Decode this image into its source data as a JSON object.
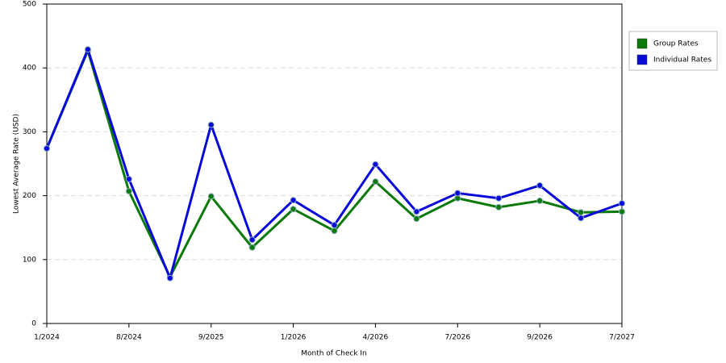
{
  "chart_data": {
    "type": "line",
    "y_label": "Lowest Average Rate (USD)",
    "x_label": "Month of Check In",
    "categories": [
      "1/2024",
      null,
      "8/2024",
      null,
      "9/2025",
      null,
      "1/2026",
      null,
      "4/2026",
      null,
      "7/2026",
      null,
      "9/2026",
      null,
      "7/2027"
    ],
    "series": [
      {
        "name": "Group Rates",
        "color": "#0b7a0b",
        "values": [
          274,
          427,
          207,
          73,
          199,
          119,
          179,
          145,
          222,
          164,
          196,
          182,
          192,
          174,
          175
        ]
      },
      {
        "name": "Individual Rates",
        "color": "#0a0ad8",
        "values": [
          274,
          429,
          226,
          71,
          311,
          131,
          193,
          154,
          249,
          175,
          204,
          196,
          216,
          165,
          188
        ]
      }
    ],
    "ylim": [
      0,
      500
    ],
    "yticks": [
      0,
      100,
      200,
      300,
      400,
      500
    ],
    "grid": true,
    "legend": "right"
  }
}
